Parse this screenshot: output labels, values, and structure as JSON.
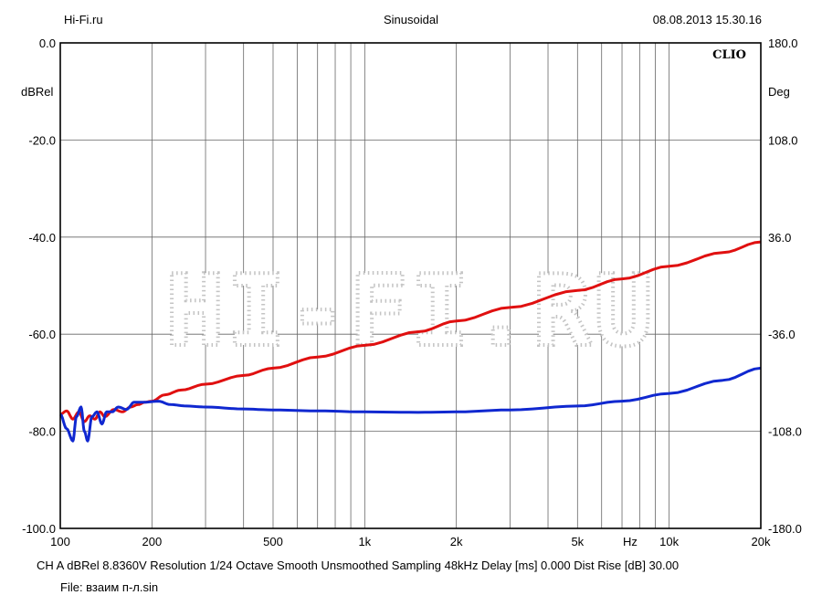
{
  "header": {
    "left": "Hi-Fi.ru",
    "center": "Sinusoidal",
    "right": "08.08.2013 15.30.16"
  },
  "chart_data": {
    "type": "line",
    "brand": "CLIO",
    "watermark": "HI-FI.RU",
    "ylabel_left": "dBRel",
    "ylabel_right": "Deg",
    "xunit": "Hz",
    "x_scale": "log",
    "xlim": [
      100,
      20000
    ],
    "ylim_left": [
      -100,
      0
    ],
    "ylim_right": [
      -180,
      180
    ],
    "grid": true,
    "x_ticks": [
      {
        "value": 100,
        "label": "100"
      },
      {
        "value": 200,
        "label": "200"
      },
      {
        "value": 500,
        "label": "500"
      },
      {
        "value": 1000,
        "label": "1k"
      },
      {
        "value": 2000,
        "label": "2k"
      },
      {
        "value": 5000,
        "label": "5k"
      },
      {
        "value": 10000,
        "label": "10k"
      },
      {
        "value": 20000,
        "label": "20k"
      }
    ],
    "y_ticks_left": [
      "0.0",
      "-20.0",
      "-40.0",
      "-60.0",
      "-80.0",
      "-100.0"
    ],
    "y_ticks_right": [
      "180.0",
      "108.0",
      "36.0",
      "-36.0",
      "-108.0",
      "-180.0"
    ],
    "series": [
      {
        "color": "#e01010",
        "points": [
          [
            100,
            -76.5
          ],
          [
            105,
            -75.8
          ],
          [
            110,
            -77.5
          ],
          [
            115,
            -76
          ],
          [
            120,
            -78
          ],
          [
            125,
            -76.8
          ],
          [
            130,
            -77.5
          ],
          [
            135,
            -76
          ],
          [
            140,
            -77
          ],
          [
            150,
            -75.5
          ],
          [
            160,
            -76
          ],
          [
            170,
            -75
          ],
          [
            180,
            -74.5
          ],
          [
            190,
            -74
          ],
          [
            200,
            -73.8
          ],
          [
            220,
            -72.5
          ],
          [
            250,
            -71.5
          ],
          [
            300,
            -70.3
          ],
          [
            400,
            -68.5
          ],
          [
            500,
            -67
          ],
          [
            700,
            -64.7
          ],
          [
            1000,
            -62.3
          ],
          [
            1500,
            -59.5
          ],
          [
            2000,
            -57.3
          ],
          [
            3000,
            -54.5
          ],
          [
            5000,
            -51
          ],
          [
            7000,
            -48.6
          ],
          [
            10000,
            -46
          ],
          [
            15000,
            -43.2
          ],
          [
            20000,
            -41
          ]
        ]
      },
      {
        "color": "#1028d0",
        "points": [
          [
            100,
            -76.5
          ],
          [
            105,
            -79.5
          ],
          [
            110,
            -82
          ],
          [
            113,
            -77
          ],
          [
            117,
            -75
          ],
          [
            120,
            -80
          ],
          [
            123,
            -82
          ],
          [
            127,
            -77
          ],
          [
            132,
            -76
          ],
          [
            137,
            -78.5
          ],
          [
            142,
            -76
          ],
          [
            148,
            -76
          ],
          [
            155,
            -75
          ],
          [
            165,
            -75.5
          ],
          [
            175,
            -74
          ],
          [
            190,
            -74
          ],
          [
            210,
            -73.8
          ],
          [
            230,
            -74.5
          ],
          [
            260,
            -74.8
          ],
          [
            300,
            -75
          ],
          [
            400,
            -75.4
          ],
          [
            500,
            -75.6
          ],
          [
            700,
            -75.8
          ],
          [
            1000,
            -76
          ],
          [
            1500,
            -76.1
          ],
          [
            2000,
            -76
          ],
          [
            3000,
            -75.6
          ],
          [
            5000,
            -74.8
          ],
          [
            7000,
            -73.8
          ],
          [
            10000,
            -72.2
          ],
          [
            15000,
            -69.5
          ],
          [
            20000,
            -67
          ]
        ]
      }
    ]
  },
  "footer": {
    "line1": "CH A   dBRel 8.8360V   Resolution 1/24 Octave   Smooth Unsmoothed   Sampling 48kHz   Delay [ms] 0.000   Dist Rise [dB] 30.00",
    "line2": "File: взаим п-л.sin"
  }
}
